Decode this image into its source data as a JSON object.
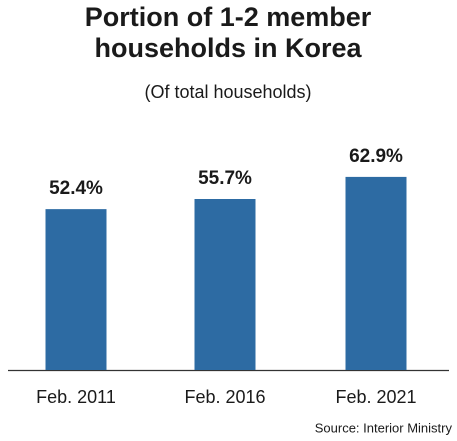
{
  "chart_data": {
    "type": "bar",
    "title": [
      "Portion of 1-2 member",
      "households in Korea"
    ],
    "subtitle": "(Of total households)",
    "categories": [
      "Feb. 2011",
      "Feb. 2016",
      "Feb. 2021"
    ],
    "values": [
      52.4,
      55.7,
      62.9
    ],
    "value_labels": [
      "52.4%",
      "55.7%",
      "62.9%"
    ],
    "color": "#2d6ba3",
    "source": "Source: Interior Ministry"
  }
}
